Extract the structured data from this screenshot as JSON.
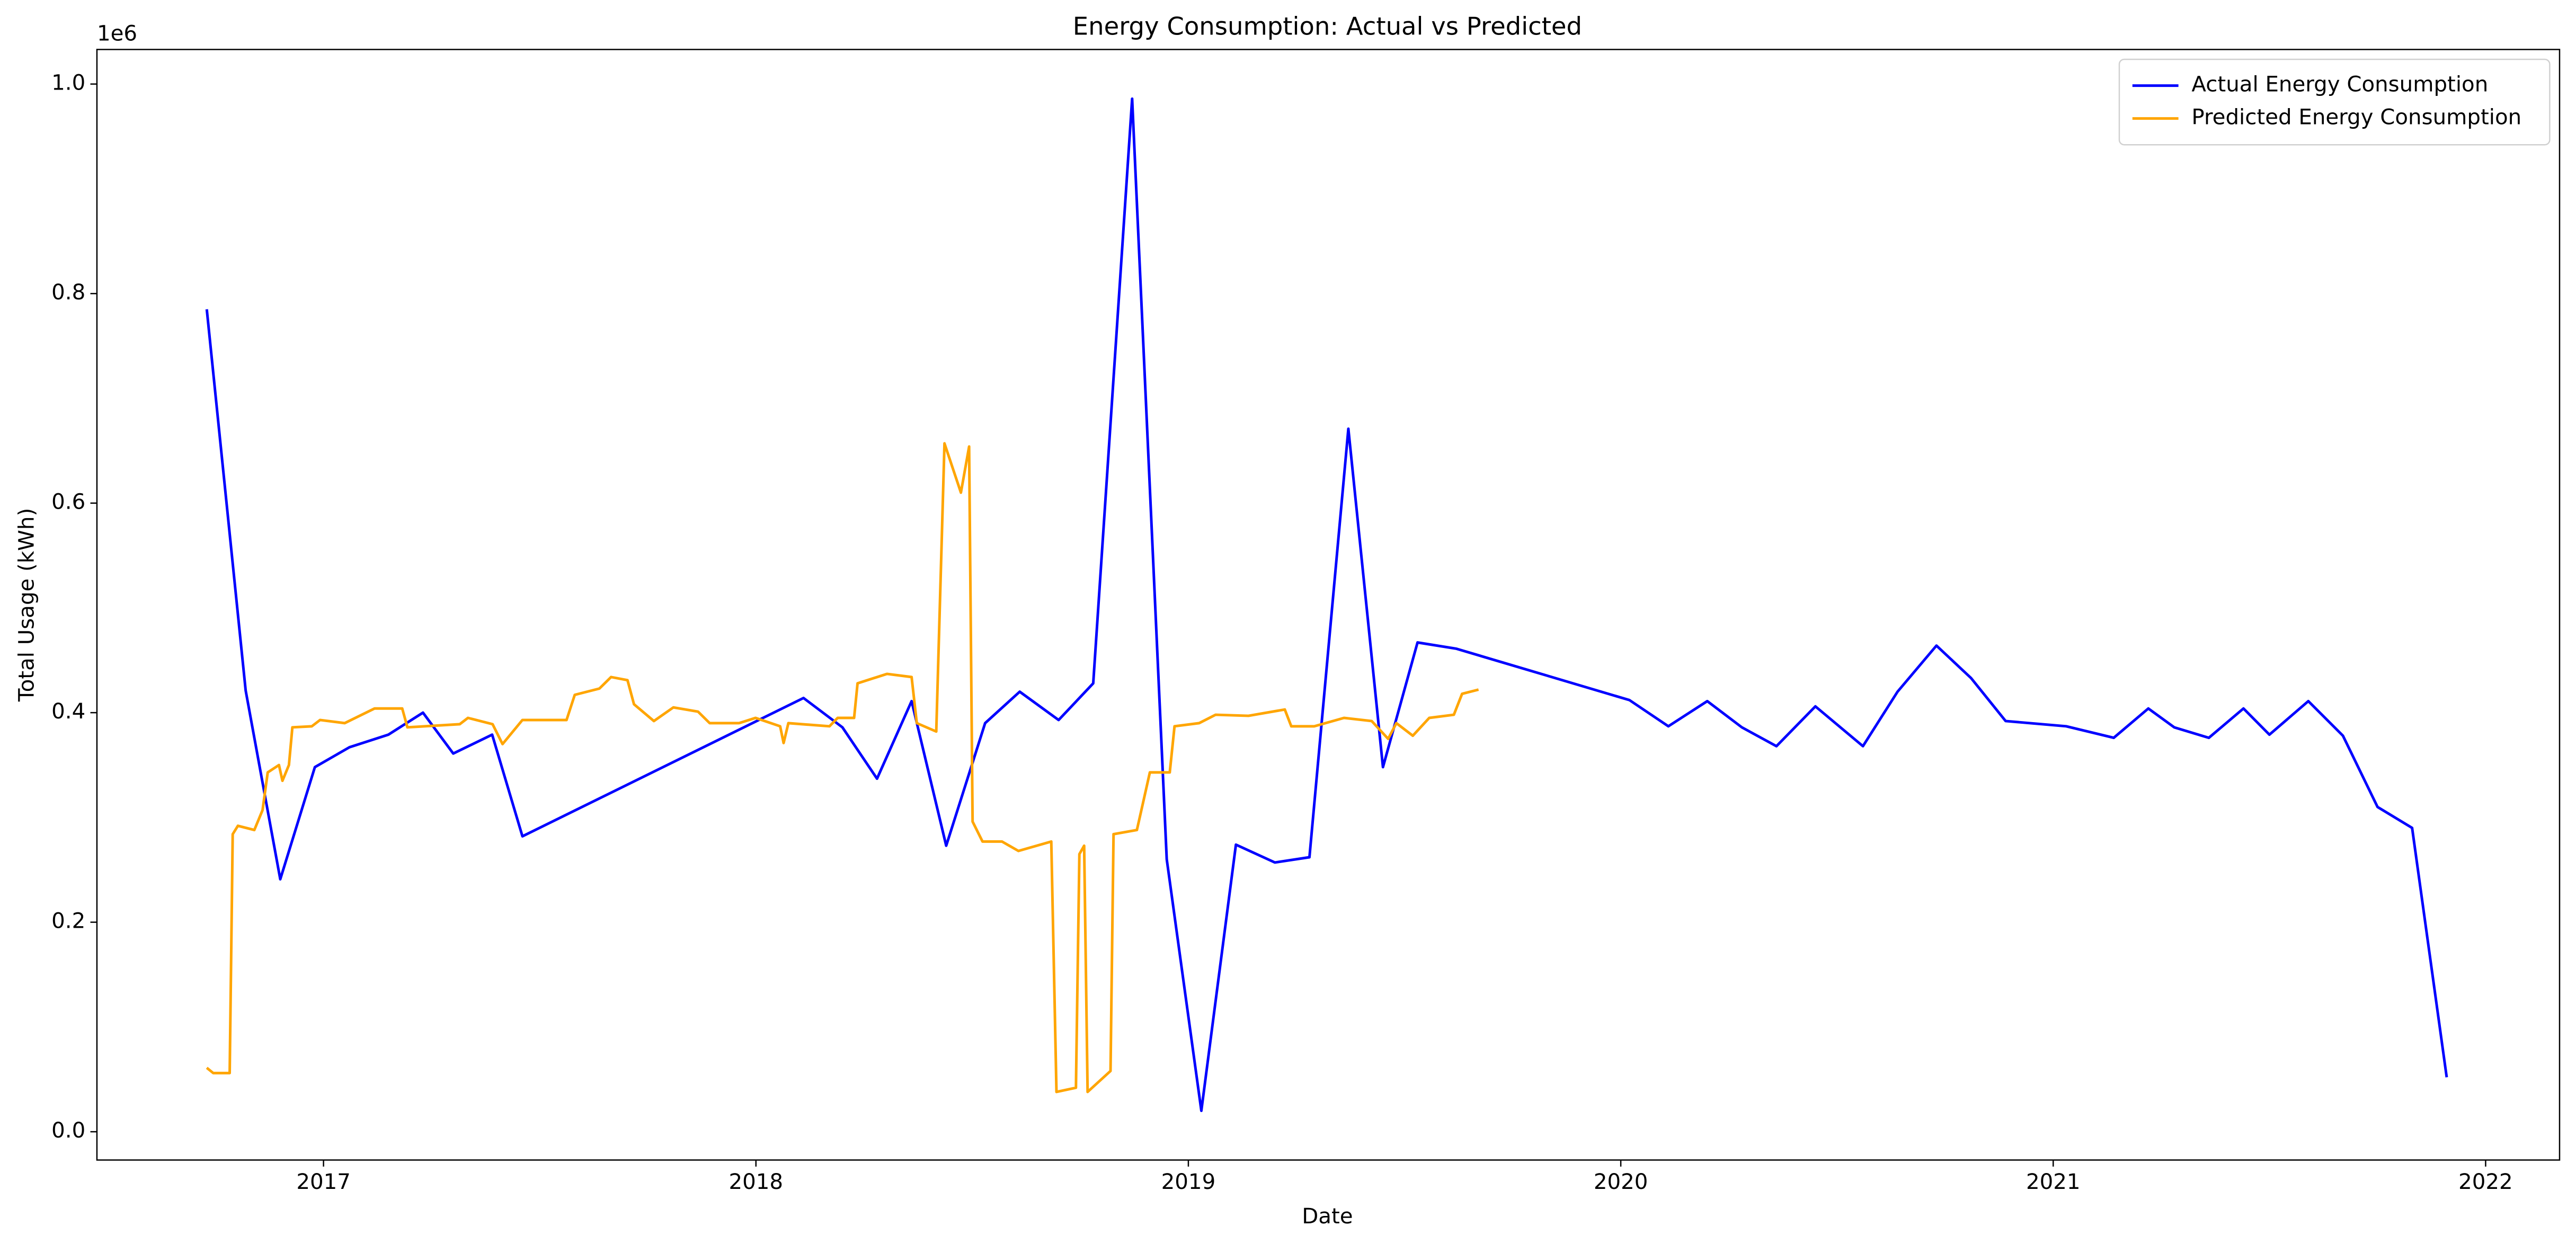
{
  "chart_data": {
    "type": "line",
    "title": "Energy Consumption: Actual vs Predicted",
    "xlabel": "Date",
    "ylabel": "Total Usage (kWh)",
    "y_offset_label": "1e6",
    "xlim": [
      2016.476,
      2022.171
    ],
    "ylim": [
      -0.027,
      1.033
    ],
    "xticks": [
      2017,
      2018,
      2019,
      2020,
      2021,
      2022
    ],
    "yticks": [
      {
        "value": 0,
        "label": "0.0"
      },
      {
        "value": 0.2,
        "label": "0.2"
      },
      {
        "value": 0.4,
        "label": "0.4"
      },
      {
        "value": 0.6,
        "label": "0.6"
      },
      {
        "value": 0.8,
        "label": "0.8"
      },
      {
        "value": 1,
        "label": "1.0"
      }
    ],
    "legend": "upper right",
    "series": [
      {
        "name": "Actual Energy Consumption",
        "color": "#0000ff",
        "x": [
          2016.73,
          2016.82,
          2016.9,
          2016.98,
          2017.06,
          2017.15,
          2017.23,
          2017.3,
          2017.39,
          2017.46,
          2018.11,
          2018.2,
          2018.28,
          2018.36,
          2018.44,
          2018.53,
          2018.61,
          2018.7,
          2018.78,
          2018.87,
          2018.95,
          2019.03,
          2019.11,
          2019.2,
          2019.28,
          2019.37,
          2019.45,
          2019.53,
          2019.62,
          2020.02,
          2020.11,
          2020.2,
          2020.28,
          2020.36,
          2020.45,
          2020.56,
          2020.64,
          2020.73,
          2020.81,
          2020.89,
          2021.03,
          2021.14,
          2021.22,
          2021.28,
          2021.36,
          2021.44,
          2021.5,
          2021.59,
          2021.67,
          2021.75,
          2021.83,
          2021.91
        ],
        "values": [
          0.785,
          0.421,
          0.241,
          0.348,
          0.367,
          0.379,
          0.4,
          0.361,
          0.379,
          0.282,
          0.414,
          0.386,
          0.337,
          0.411,
          0.273,
          0.39,
          0.42,
          0.393,
          0.428,
          0.986,
          0.26,
          0.02,
          0.274,
          0.257,
          0.262,
          0.671,
          0.348,
          0.467,
          0.461,
          0.412,
          0.387,
          0.411,
          0.386,
          0.368,
          0.406,
          0.368,
          0.42,
          0.464,
          0.433,
          0.392,
          0.387,
          0.376,
          0.404,
          0.386,
          0.376,
          0.404,
          0.379,
          0.411,
          0.378,
          0.31,
          0.29,
          0.052
        ]
      },
      {
        "name": "Predicted Energy Consumption",
        "color": "#ffa500",
        "x": [
          2016.73,
          2016.745,
          2016.783,
          2016.79,
          2016.802,
          2016.84,
          2016.859,
          2016.871,
          2016.897,
          2016.905,
          2016.92,
          2016.928,
          2016.973,
          2016.992,
          2017.049,
          2017.118,
          2017.182,
          2017.194,
          2017.315,
          2017.334,
          2017.391,
          2017.414,
          2017.46,
          2017.562,
          2017.581,
          2017.638,
          2017.665,
          2017.703,
          2017.718,
          2017.764,
          2017.809,
          2017.866,
          2017.893,
          2017.961,
          2017.999,
          2018.056,
          2018.064,
          2018.075,
          2018.17,
          2018.189,
          2018.227,
          2018.235,
          2018.303,
          2018.36,
          2018.372,
          2018.417,
          2018.436,
          2018.474,
          2018.493,
          2018.501,
          2018.524,
          2018.569,
          2018.607,
          2018.683,
          2018.695,
          2018.74,
          2018.748,
          2018.759,
          2018.767,
          2018.82,
          2018.827,
          2018.881,
          2018.911,
          2018.957,
          2018.968,
          2019.025,
          2019.063,
          2019.139,
          2019.223,
          2019.238,
          2019.291,
          2019.36,
          2019.424,
          2019.462,
          2019.481,
          2019.519,
          2019.557,
          2019.614,
          2019.633,
          2019.671
        ],
        "values": [
          0.061,
          0.056,
          0.056,
          0.284,
          0.292,
          0.288,
          0.307,
          0.343,
          0.35,
          0.335,
          0.35,
          0.386,
          0.387,
          0.393,
          0.39,
          0.404,
          0.404,
          0.386,
          0.389,
          0.395,
          0.389,
          0.37,
          0.393,
          0.393,
          0.417,
          0.423,
          0.434,
          0.431,
          0.408,
          0.392,
          0.405,
          0.401,
          0.39,
          0.39,
          0.395,
          0.387,
          0.371,
          0.39,
          0.387,
          0.395,
          0.395,
          0.428,
          0.437,
          0.434,
          0.39,
          0.382,
          0.657,
          0.61,
          0.654,
          0.296,
          0.277,
          0.277,
          0.268,
          0.277,
          0.038,
          0.042,
          0.265,
          0.273,
          0.038,
          0.058,
          0.284,
          0.288,
          0.343,
          0.343,
          0.387,
          0.39,
          0.398,
          0.397,
          0.403,
          0.387,
          0.387,
          0.395,
          0.392,
          0.375,
          0.39,
          0.378,
          0.395,
          0.398,
          0.418,
          0.422
        ]
      }
    ]
  }
}
